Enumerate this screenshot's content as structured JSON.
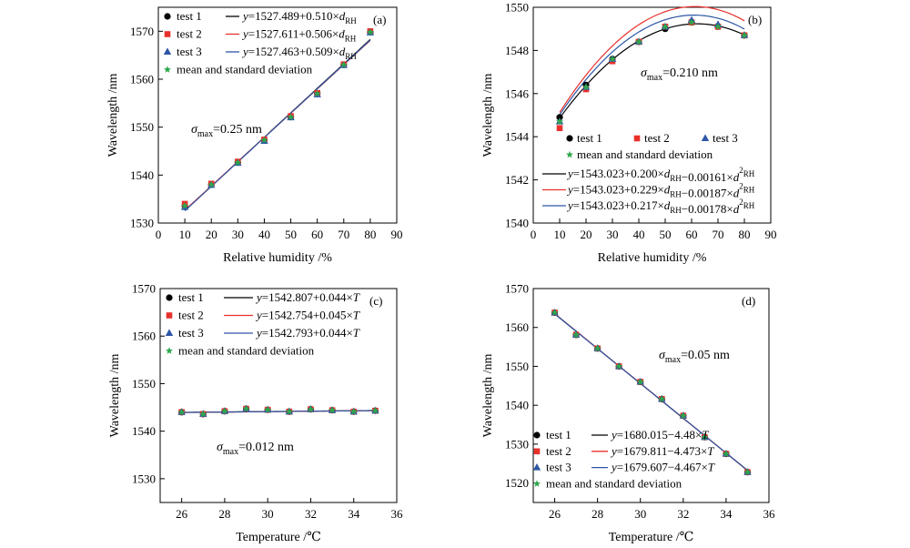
{
  "colors": {
    "test1": "#000000",
    "test2": "#e8312c",
    "test3": "#2e56a6",
    "mean": "#2ea84a"
  },
  "chart_data": [
    {
      "id": "a",
      "panel_label": "(a)",
      "type": "scatter",
      "xlabel": "Relative humidity /%",
      "ylabel": "Wavelength /nm",
      "xlim": [
        0,
        90
      ],
      "ylim": [
        1530,
        1575
      ],
      "xticks": [
        0,
        10,
        20,
        30,
        40,
        50,
        60,
        70,
        80,
        90
      ],
      "yticks": [
        1530,
        1540,
        1550,
        1560,
        1570
      ],
      "legend_position": "top-left",
      "annotation": "σmax=0.25 nm",
      "annotation_parts": {
        "sym": "σ",
        "sub": "max",
        "rest": "=0.25 nm"
      },
      "x": [
        10,
        20,
        30,
        40,
        50,
        60,
        70,
        80
      ],
      "series": [
        {
          "name": "test 1",
          "marker": "circle",
          "values": [
            1533.6,
            1538.0,
            1542.6,
            1547.3,
            1552.1,
            1557.0,
            1563.0,
            1569.8
          ]
        },
        {
          "name": "test 2",
          "marker": "square",
          "values": [
            1534.0,
            1538.2,
            1542.8,
            1547.4,
            1552.3,
            1557.1,
            1563.1,
            1570.0
          ]
        },
        {
          "name": "test 3",
          "marker": "triangle",
          "values": [
            1533.3,
            1537.9,
            1542.5,
            1547.1,
            1552.0,
            1556.8,
            1562.9,
            1569.7
          ]
        },
        {
          "name": "mean and standard deviation",
          "marker": "star",
          "values": [
            1533.6,
            1538.0,
            1542.6,
            1547.3,
            1552.1,
            1557.0,
            1563.0,
            1569.8
          ]
        }
      ],
      "fits": [
        {
          "label": "y=1527.489+0.510×dRH",
          "parts": [
            {
              "t": "y",
              "i": true
            },
            {
              "t": "=1527.489+0.510×"
            },
            {
              "t": "d",
              "i": true
            },
            {
              "t": "RH",
              "sub": true
            }
          ],
          "coef": [
            1527.489,
            0.51,
            0
          ]
        },
        {
          "label": "y=1527.611+0.506×dRH",
          "parts": [
            {
              "t": "y",
              "i": true
            },
            {
              "t": "=1527.611+0.506×"
            },
            {
              "t": "d",
              "i": true
            },
            {
              "t": "RH",
              "sub": true
            }
          ],
          "coef": [
            1527.611,
            0.506,
            0
          ]
        },
        {
          "label": "y=1527.463+0.509×dRH",
          "parts": [
            {
              "t": "y",
              "i": true
            },
            {
              "t": "=1527.463+0.509×"
            },
            {
              "t": "d",
              "i": true
            },
            {
              "t": "RH",
              "sub": true
            }
          ],
          "coef": [
            1527.463,
            0.509,
            0
          ]
        }
      ]
    },
    {
      "id": "b",
      "panel_label": "(b)",
      "type": "scatter",
      "xlabel": "Relative humidity /%",
      "ylabel": "Wavelength /nm",
      "xlim": [
        0,
        90
      ],
      "ylim": [
        1540,
        1550
      ],
      "xticks": [
        0,
        10,
        20,
        30,
        40,
        50,
        60,
        70,
        80,
        90
      ],
      "yticks": [
        1540,
        1542,
        1544,
        1546,
        1548,
        1550
      ],
      "legend_position": "bottom-center",
      "annotation": "σmax=0.210 nm",
      "annotation_parts": {
        "sym": "σ",
        "sub": "max",
        "rest": "=0.210 nm"
      },
      "x": [
        10,
        20,
        30,
        40,
        50,
        60,
        70,
        80
      ],
      "series": [
        {
          "name": "test 1",
          "marker": "circle",
          "values": [
            1544.9,
            1546.4,
            1547.6,
            1548.4,
            1549.0,
            1549.3,
            1549.1,
            1548.7
          ]
        },
        {
          "name": "test 2",
          "marker": "square",
          "values": [
            1544.4,
            1546.2,
            1547.5,
            1548.4,
            1549.1,
            1549.3,
            1549.1,
            1548.7
          ]
        },
        {
          "name": "test 3",
          "marker": "triangle",
          "values": [
            1544.7,
            1546.3,
            1547.6,
            1548.4,
            1549.1,
            1549.4,
            1549.2,
            1548.7
          ]
        },
        {
          "name": "mean and standard deviation",
          "marker": "star",
          "values": [
            1544.7,
            1546.3,
            1547.6,
            1548.4,
            1549.1,
            1549.3,
            1549.1,
            1548.7
          ]
        }
      ],
      "fits": [
        {
          "label": "y=1543.023+0.200×dRH−0.00161×d2RH",
          "parts": [
            {
              "t": "y",
              "i": true
            },
            {
              "t": "=1543.023+0.200×"
            },
            {
              "t": "d",
              "i": true
            },
            {
              "t": "RH",
              "sub": true
            },
            {
              "t": "−0.00161×"
            },
            {
              "t": "d",
              "i": true
            },
            {
              "t": "2",
              "sup": true
            },
            {
              "t": "RH",
              "sub": true
            }
          ],
          "coef": [
            1543.023,
            0.2,
            -0.00161
          ]
        },
        {
          "label": "y=1543.023+0.229×dRH−0.00187×d2RH",
          "parts": [
            {
              "t": "y",
              "i": true
            },
            {
              "t": "=1543.023+0.229×"
            },
            {
              "t": "d",
              "i": true
            },
            {
              "t": "RH",
              "sub": true
            },
            {
              "t": "−0.00187×"
            },
            {
              "t": "d",
              "i": true
            },
            {
              "t": "2",
              "sup": true
            },
            {
              "t": "RH",
              "sub": true
            }
          ],
          "coef": [
            1543.023,
            0.229,
            -0.00187
          ]
        },
        {
          "label": "y=1543.023+0.217×dRH−0.00178×d2RH",
          "parts": [
            {
              "t": "y",
              "i": true
            },
            {
              "t": "=1543.023+0.217×"
            },
            {
              "t": "d",
              "i": true
            },
            {
              "t": "RH",
              "sub": true
            },
            {
              "t": "−0.00178×"
            },
            {
              "t": "d",
              "i": true
            },
            {
              "t": "2",
              "sup": true
            },
            {
              "t": "RH",
              "sub": true
            }
          ],
          "coef": [
            1543.023,
            0.217,
            -0.00178
          ]
        }
      ]
    },
    {
      "id": "c",
      "panel_label": "(c)",
      "type": "scatter",
      "xlabel": "Temperature /℃",
      "ylabel": "Wavelength /nm",
      "xlim": [
        25,
        36
      ],
      "ylim": [
        1525,
        1570
      ],
      "xticks": [
        26,
        28,
        30,
        32,
        34,
        36
      ],
      "yticks": [
        1530,
        1540,
        1550,
        1560,
        1570
      ],
      "legend_position": "top-left",
      "annotation": "σmax=0.012 nm",
      "annotation_parts": {
        "sym": "σ",
        "sub": "max",
        "rest": "=0.012 nm"
      },
      "x": [
        26,
        27,
        28,
        29,
        30,
        31,
        32,
        33,
        34,
        35
      ],
      "series": [
        {
          "name": "test 1",
          "marker": "circle",
          "values": [
            1544.0,
            1543.6,
            1544.2,
            1544.7,
            1544.5,
            1544.1,
            1544.6,
            1544.4,
            1544.1,
            1544.3
          ]
        },
        {
          "name": "test 2",
          "marker": "square",
          "values": [
            1544.0,
            1543.6,
            1544.2,
            1544.7,
            1544.5,
            1544.1,
            1544.6,
            1544.4,
            1544.1,
            1544.3
          ]
        },
        {
          "name": "test 3",
          "marker": "triangle",
          "values": [
            1544.0,
            1543.6,
            1544.2,
            1544.7,
            1544.5,
            1544.1,
            1544.6,
            1544.4,
            1544.1,
            1544.3
          ]
        },
        {
          "name": "mean and standard deviation",
          "marker": "star",
          "values": [
            1544.0,
            1543.6,
            1544.2,
            1544.7,
            1544.5,
            1544.1,
            1544.6,
            1544.4,
            1544.1,
            1544.3
          ]
        }
      ],
      "fits": [
        {
          "label": "y=1542.807+0.044×T",
          "parts": [
            {
              "t": "y",
              "i": true
            },
            {
              "t": "=1542.807+0.044×"
            },
            {
              "t": "T",
              "i": true
            }
          ],
          "coef": [
            1542.807,
            0.044,
            0
          ]
        },
        {
          "label": "y=1542.754+0.045×T",
          "parts": [
            {
              "t": "y",
              "i": true
            },
            {
              "t": "=1542.754+0.045×"
            },
            {
              "t": "T",
              "i": true
            }
          ],
          "coef": [
            1542.754,
            0.045,
            0
          ]
        },
        {
          "label": "y=1542.793+0.044×T",
          "parts": [
            {
              "t": "y",
              "i": true
            },
            {
              "t": "=1542.793+0.044×"
            },
            {
              "t": "T",
              "i": true
            }
          ],
          "coef": [
            1542.793,
            0.044,
            0
          ]
        }
      ]
    },
    {
      "id": "d",
      "panel_label": "(d)",
      "type": "scatter",
      "xlabel": "Temperature /℃",
      "ylabel": "Wavelength /nm",
      "xlim": [
        25,
        36
      ],
      "ylim": [
        1515,
        1570
      ],
      "xticks": [
        26,
        28,
        30,
        32,
        34,
        36
      ],
      "yticks": [
        1520,
        1530,
        1540,
        1550,
        1560,
        1570
      ],
      "legend_position": "bottom-left",
      "annotation": "σmax=0.05 nm",
      "annotation_parts": {
        "sym": "σ",
        "sub": "max",
        "rest": "=0.05 nm"
      },
      "x": [
        26,
        27,
        28,
        29,
        30,
        31,
        32,
        33,
        34,
        35
      ],
      "series": [
        {
          "name": "test 1",
          "marker": "circle",
          "values": [
            1563.8,
            1558.1,
            1554.6,
            1550.0,
            1546.0,
            1541.6,
            1537.3,
            1531.8,
            1527.5,
            1522.8
          ]
        },
        {
          "name": "test 2",
          "marker": "square",
          "values": [
            1563.8,
            1558.1,
            1554.6,
            1550.0,
            1546.0,
            1541.6,
            1537.3,
            1531.8,
            1527.5,
            1522.8
          ]
        },
        {
          "name": "test 3",
          "marker": "triangle",
          "values": [
            1563.8,
            1558.1,
            1554.6,
            1550.0,
            1546.0,
            1541.6,
            1537.3,
            1531.8,
            1527.5,
            1522.8
          ]
        },
        {
          "name": "mean and standard deviation",
          "marker": "star",
          "values": [
            1563.8,
            1558.1,
            1554.6,
            1550.0,
            1546.0,
            1541.6,
            1537.3,
            1531.8,
            1527.5,
            1522.8
          ]
        }
      ],
      "fits": [
        {
          "label": "y=1680.015−4.48×T",
          "parts": [
            {
              "t": "y",
              "i": true
            },
            {
              "t": "=1680.015−4.48×"
            },
            {
              "t": "T",
              "i": true
            }
          ],
          "coef": [
            1680.015,
            -4.48,
            0
          ]
        },
        {
          "label": "y=1679.811−4.473×T",
          "parts": [
            {
              "t": "y",
              "i": true
            },
            {
              "t": "=1679.811−4.473×"
            },
            {
              "t": "T",
              "i": true
            }
          ],
          "coef": [
            1679.811,
            -4.473,
            0
          ]
        },
        {
          "label": "y=1679.607−4.467×T",
          "parts": [
            {
              "t": "y",
              "i": true
            },
            {
              "t": "=1679.607−4.467×"
            },
            {
              "t": "T",
              "i": true
            }
          ],
          "coef": [
            1679.607,
            -4.467,
            0
          ]
        }
      ]
    }
  ]
}
